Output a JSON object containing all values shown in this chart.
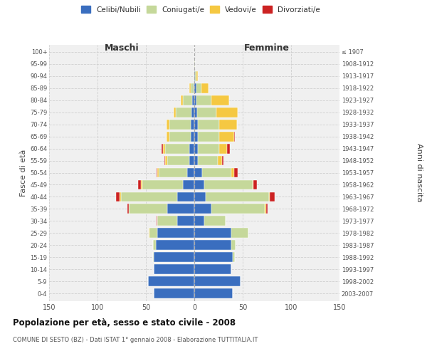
{
  "age_groups": [
    "0-4",
    "5-9",
    "10-14",
    "15-19",
    "20-24",
    "25-29",
    "30-34",
    "35-39",
    "40-44",
    "45-49",
    "50-54",
    "55-59",
    "60-64",
    "65-69",
    "70-74",
    "75-79",
    "80-84",
    "85-89",
    "90-94",
    "95-99",
    "100+"
  ],
  "birth_years": [
    "2003-2007",
    "1998-2002",
    "1993-1997",
    "1988-1992",
    "1983-1987",
    "1978-1982",
    "1973-1977",
    "1968-1972",
    "1963-1967",
    "1958-1962",
    "1953-1957",
    "1948-1952",
    "1943-1947",
    "1938-1942",
    "1933-1937",
    "1928-1932",
    "1923-1927",
    "1918-1922",
    "1913-1917",
    "1908-1912",
    "≤ 1907"
  ],
  "male": {
    "celibe": [
      42,
      48,
      42,
      42,
      40,
      38,
      18,
      28,
      18,
      12,
      7,
      5,
      5,
      4,
      4,
      3,
      2,
      1,
      0,
      0,
      0
    ],
    "coniugato": [
      0,
      0,
      0,
      1,
      3,
      8,
      20,
      40,
      58,
      42,
      30,
      23,
      25,
      22,
      22,
      16,
      10,
      3,
      1,
      0,
      0
    ],
    "vedovo": [
      0,
      0,
      0,
      0,
      0,
      1,
      0,
      0,
      1,
      1,
      1,
      2,
      2,
      3,
      3,
      2,
      2,
      1,
      0,
      0,
      0
    ],
    "divorziato": [
      0,
      0,
      0,
      0,
      0,
      0,
      1,
      1,
      4,
      3,
      1,
      1,
      2,
      0,
      0,
      0,
      0,
      0,
      0,
      0,
      0
    ]
  },
  "female": {
    "nubile": [
      40,
      48,
      38,
      40,
      38,
      38,
      10,
      18,
      12,
      10,
      8,
      4,
      4,
      4,
      4,
      3,
      2,
      2,
      1,
      0,
      0
    ],
    "coniugata": [
      0,
      0,
      0,
      2,
      5,
      18,
      22,
      55,
      65,
      50,
      30,
      20,
      22,
      22,
      22,
      20,
      16,
      5,
      1,
      1,
      0
    ],
    "vedova": [
      0,
      0,
      0,
      0,
      0,
      0,
      0,
      1,
      1,
      1,
      3,
      5,
      8,
      15,
      18,
      22,
      18,
      8,
      2,
      0,
      0
    ],
    "divorziata": [
      0,
      0,
      0,
      0,
      0,
      0,
      0,
      2,
      5,
      4,
      4,
      1,
      3,
      1,
      0,
      0,
      0,
      0,
      0,
      0,
      0
    ]
  },
  "colors": {
    "celibe": "#3A6EBF",
    "coniugato": "#C5D89A",
    "vedovo": "#F5C842",
    "divorziato": "#CC2222"
  },
  "legend_labels": [
    "Celibi/Nubili",
    "Coniugati/e",
    "Vedovi/e",
    "Divorziati/e"
  ],
  "title": "Popolazione per età, sesso e stato civile - 2008",
  "subtitle": "COMUNE DI SESTO (BZ) - Dati ISTAT 1° gennaio 2008 - Elaborazione TUTTITALIA.IT",
  "ylabel_left": "Fasce di età",
  "ylabel_right": "Anni di nascita",
  "label_maschi": "Maschi",
  "label_femmine": "Femmine",
  "xlim": 150,
  "bg_color": "#f0f0f0",
  "grid_color": "#cccccc"
}
